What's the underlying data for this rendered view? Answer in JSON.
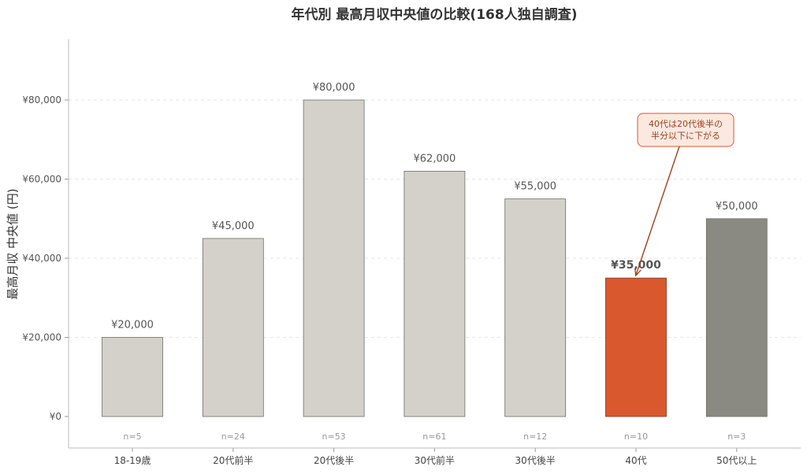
{
  "chart_data": {
    "type": "bar",
    "title": "年代別 最高月収中央値の比較(168人独自調査)",
    "xlabel": "",
    "ylabel": "最高月収 中央値 (円)",
    "ylim": [
      0,
      95000
    ],
    "yticks": [
      0,
      20000,
      40000,
      60000,
      80000
    ],
    "ytick_labels": [
      "¥0",
      "¥20,000",
      "¥40,000",
      "¥60,000",
      "¥80,000"
    ],
    "grid": "horizontal-dashed",
    "categories": [
      "18-19歳",
      "20代前半",
      "20代後半",
      "30代前半",
      "30代後半",
      "40代",
      "50代以上"
    ],
    "values": [
      20000,
      45000,
      80000,
      62000,
      55000,
      35000,
      50000
    ],
    "value_labels": [
      "¥20,000",
      "¥45,000",
      "¥80,000",
      "¥62,000",
      "¥55,000",
      "¥35,000",
      "¥50,000"
    ],
    "sample_sizes": [
      "n=5",
      "n=24",
      "n=53",
      "n=61",
      "n=12",
      "n=10",
      "n=3"
    ],
    "colors": [
      "#d3d1c9",
      "#d3d1c9",
      "#d3d1c9",
      "#d3d1c9",
      "#d3d1c9",
      "#d9582e",
      "#8a8a82"
    ],
    "highlight_index": 5,
    "highlight_label_color": "#a0401e",
    "annotation": {
      "text_lines": [
        "40代は20代後半の",
        "半分以下に下がる"
      ],
      "target_index": 5,
      "box_fill": "#fbe9e1",
      "box_stroke": "#d9582e",
      "arrow_color": "#a0401e"
    }
  }
}
